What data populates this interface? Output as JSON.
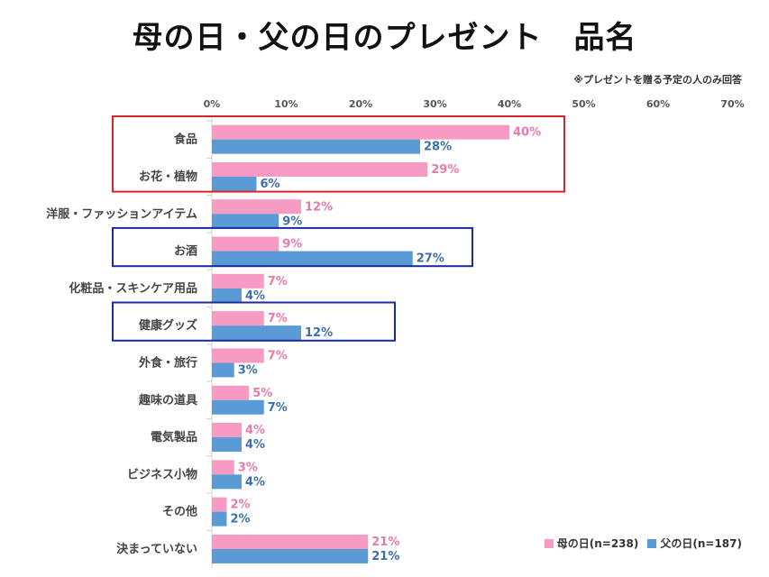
{
  "header": {
    "title": "母の日・父の日のプレゼント　品名",
    "note": "※プレゼントを贈る予定の人のみ回答"
  },
  "colors": {
    "mother": "#f79ac4",
    "father": "#5b9bd5",
    "mother_label": "#e97aa8",
    "father_label": "#3d6fa8"
  },
  "chart_data": {
    "type": "bar",
    "orientation": "horizontal",
    "categories": [
      "食品",
      "お花・植物",
      "洋服・ファッションアイテム",
      "お酒",
      "化粧品・スキンケア用品",
      "健康グッズ",
      "外食・旅行",
      "趣味の道具",
      "電気製品",
      "ビジネス小物",
      "その他",
      "決まっていない"
    ],
    "series": [
      {
        "name": "母の日(n=238)",
        "values": [
          40,
          29,
          12,
          9,
          7,
          7,
          7,
          5,
          4,
          3,
          2,
          21
        ]
      },
      {
        "name": "父の日(n=187)",
        "values": [
          28,
          6,
          9,
          27,
          4,
          12,
          3,
          7,
          4,
          4,
          2,
          21
        ]
      }
    ],
    "value_labels": {
      "母の日(n=238)": [
        "40%",
        "29%",
        "12%",
        "9%",
        "7%",
        "7%",
        "7%",
        "5%",
        "4%",
        "3%",
        "2%",
        "21%"
      ],
      "父の日(n=187)": [
        "28%",
        "6%",
        "9%",
        "27%",
        "4%",
        "12%",
        "3%",
        "7%",
        "4%",
        "4%",
        "2%",
        "21%"
      ]
    },
    "xticks": [
      "0%",
      "10%",
      "20%",
      "30%",
      "40%",
      "50%",
      "60%",
      "70%"
    ],
    "xlim": [
      0,
      70
    ],
    "legend_position": "bottom-right",
    "grid": false,
    "highlights": [
      {
        "categories": [
          "食品",
          "お花・植物"
        ],
        "color": "#d9232d"
      },
      {
        "categories": [
          "お酒"
        ],
        "color": "#1a2aa0"
      },
      {
        "categories": [
          "健康グッズ"
        ],
        "color": "#1a2aa0"
      }
    ]
  }
}
